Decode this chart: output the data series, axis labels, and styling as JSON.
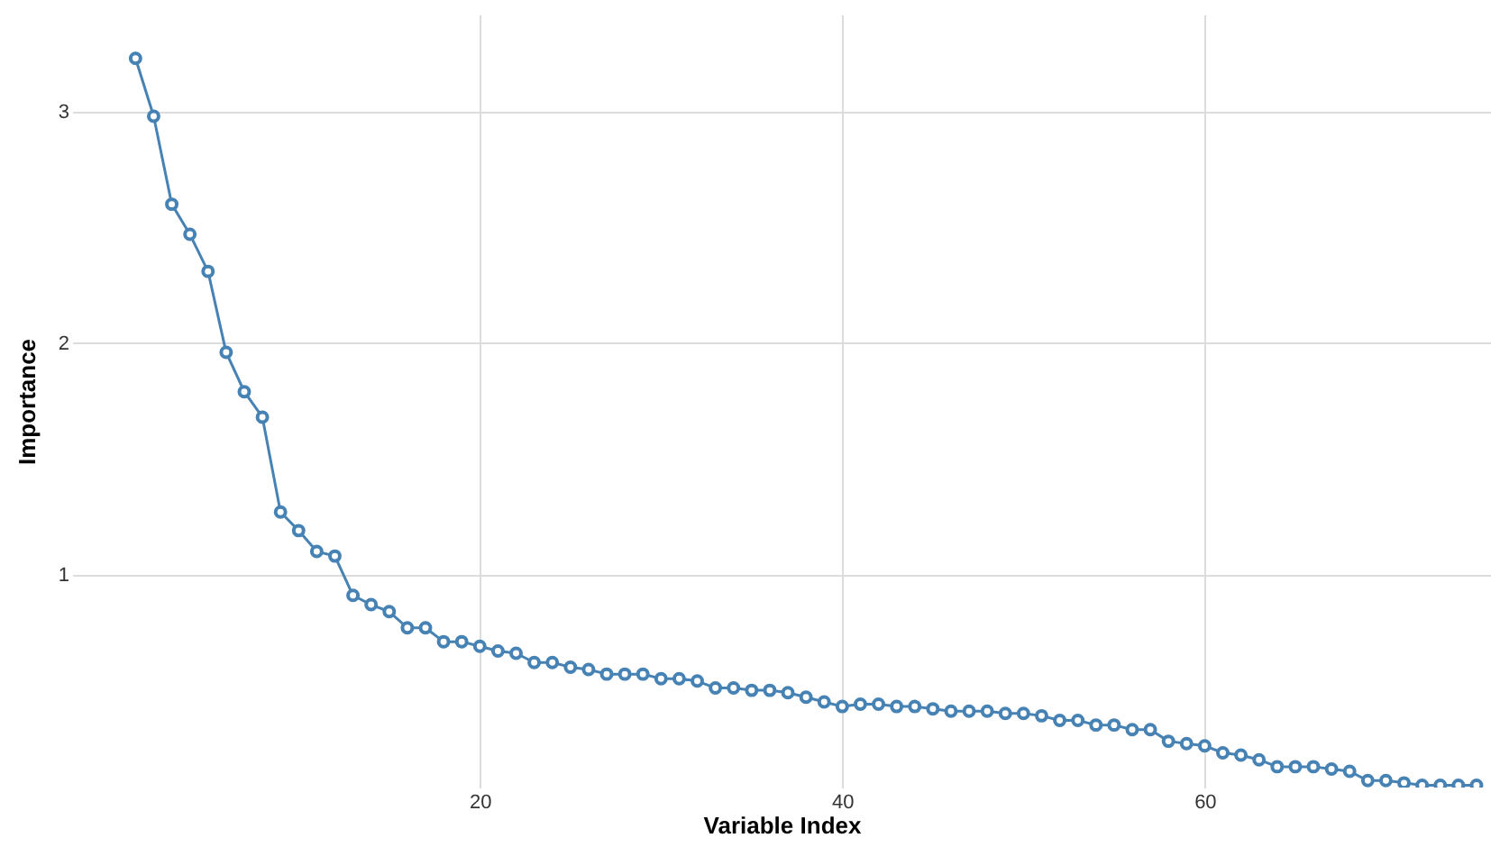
{
  "chart_data": {
    "type": "line",
    "xlabel": "Variable Index",
    "ylabel": "Importance",
    "x": [
      1,
      2,
      3,
      4,
      5,
      6,
      7,
      8,
      9,
      10,
      11,
      12,
      13,
      14,
      15,
      16,
      17,
      18,
      19,
      20,
      21,
      22,
      23,
      24,
      25,
      26,
      27,
      28,
      29,
      30,
      31,
      32,
      33,
      34,
      35,
      36,
      37,
      38,
      39,
      40,
      41,
      42,
      43,
      44,
      45,
      46,
      47,
      48,
      49,
      50,
      51,
      52,
      53,
      54,
      55,
      56,
      57,
      58,
      59,
      60,
      61,
      62,
      63,
      64,
      65,
      66,
      67,
      68,
      69,
      70,
      71,
      72,
      73,
      74,
      75
    ],
    "series": [
      {
        "color": "#4682b4",
        "values": [
          3.23,
          2.98,
          2.6,
          2.47,
          2.31,
          1.96,
          1.79,
          1.68,
          1.27,
          1.19,
          1.1,
          1.08,
          0.91,
          0.87,
          0.84,
          0.77,
          0.77,
          0.71,
          0.71,
          0.69,
          0.67,
          0.66,
          0.62,
          0.62,
          0.6,
          0.59,
          0.57,
          0.57,
          0.57,
          0.55,
          0.55,
          0.54,
          0.51,
          0.51,
          0.5,
          0.5,
          0.49,
          0.47,
          0.45,
          0.43,
          0.44,
          0.44,
          0.43,
          0.43,
          0.42,
          0.41,
          0.41,
          0.41,
          0.4,
          0.4,
          0.39,
          0.37,
          0.37,
          0.35,
          0.35,
          0.33,
          0.33,
          0.28,
          0.27,
          0.26,
          0.23,
          0.22,
          0.2,
          0.17,
          0.17,
          0.17,
          0.16,
          0.15,
          0.11,
          0.11,
          0.1,
          0.09,
          0.09,
          0.09,
          0.09
        ]
      }
    ],
    "xlim": [
      -2.5,
      75.8
    ],
    "ylim": [
      0.08,
      3.42
    ],
    "xticks": [
      20,
      40,
      60
    ],
    "yticks": [
      1,
      2,
      3
    ],
    "grid": true,
    "marker": "circle",
    "line_style": "solid"
  }
}
